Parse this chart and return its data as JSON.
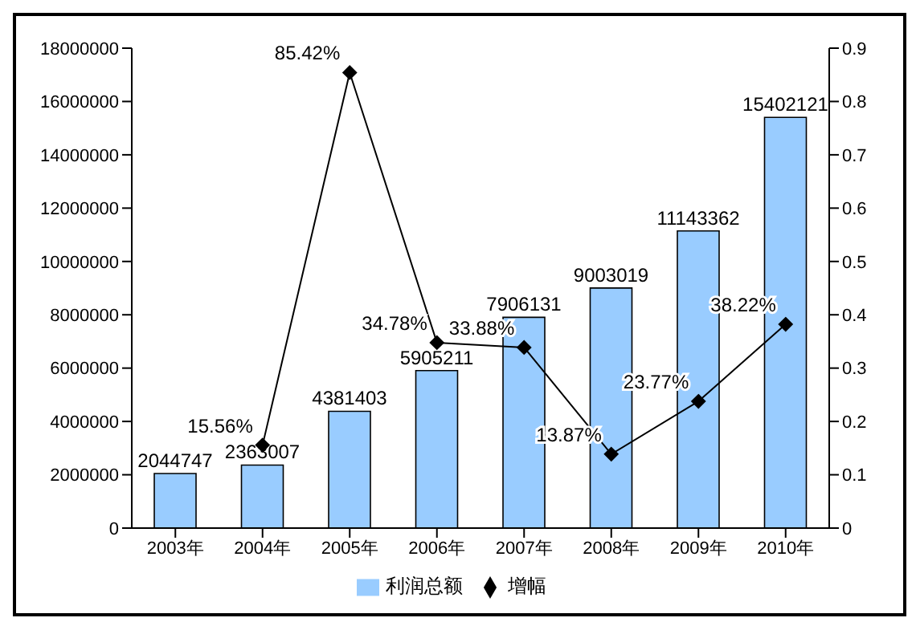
{
  "chart_data": {
    "type": "bar",
    "categories": [
      "2003年",
      "2004年",
      "2005年",
      "2006年",
      "2007年",
      "2008年",
      "2009年",
      "2010年"
    ],
    "series": [
      {
        "name": "利润总额",
        "color": "#99ccff",
        "values": [
          2044747,
          2363007,
          4381403,
          5905211,
          7906131,
          9003019,
          11143362,
          15402121
        ],
        "value_labels": [
          "2044747",
          "2363007",
          "4381403",
          "5905211",
          "7906131",
          "9003019",
          "11143362",
          "15402121"
        ]
      },
      {
        "name": "增幅",
        "type": "line",
        "axis": "y2",
        "color": "#000000",
        "marker": "diamond",
        "values": [
          null,
          0.1556,
          0.8542,
          0.3478,
          0.3388,
          0.1387,
          0.2377,
          0.3822
        ],
        "value_labels": [
          null,
          "15.56%",
          "85.42%",
          "34.78%",
          "33.88%",
          "13.87%",
          "23.77%",
          "38.22%"
        ]
      }
    ],
    "ylim": [
      0,
      18000000
    ],
    "yticks": [
      0,
      2000000,
      4000000,
      6000000,
      8000000,
      10000000,
      12000000,
      14000000,
      16000000,
      18000000
    ],
    "y2lim": [
      0,
      0.9
    ],
    "y2ticks": [
      0,
      0.1,
      0.2,
      0.3,
      0.4,
      0.5,
      0.6,
      0.7,
      0.8,
      0.9
    ],
    "grid": false,
    "legend": "bottom"
  }
}
